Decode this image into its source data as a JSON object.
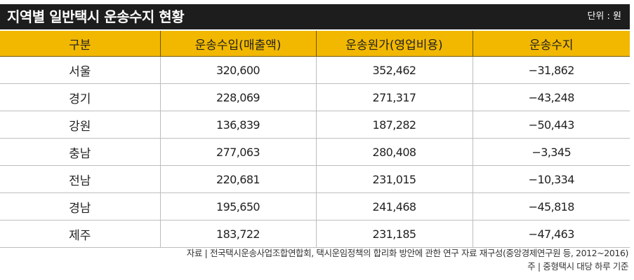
{
  "title": "지역별 일반택시 운송수지 현황",
  "unit": "단위 : 원",
  "table": {
    "headers": [
      "구분",
      "운송수입(매출액)",
      "운송원가(영업비용)",
      "운송수지"
    ],
    "rows": [
      [
        "서울",
        "320,600",
        "352,462",
        "−31,862"
      ],
      [
        "경기",
        "228,069",
        "271,317",
        "−43,248"
      ],
      [
        "강원",
        "136,839",
        "187,282",
        "−50,443"
      ],
      [
        "충남",
        "277,063",
        "280,408",
        "−3,345"
      ],
      [
        "전남",
        "220,681",
        "231,015",
        "−10,334"
      ],
      [
        "경남",
        "195,650",
        "241,468",
        "−45,818"
      ],
      [
        "제주",
        "183,722",
        "231,185",
        "−47,463"
      ]
    ]
  },
  "notes": {
    "source": "자료 | 전국택시운송사업조합연합회, 택시운임정책의 합리화 방안에 관한 연구 자료 재구성(중앙경제연구원 등, 2012~2016)",
    "footnote": "주 | 중형택시 대당 하루 기준"
  }
}
